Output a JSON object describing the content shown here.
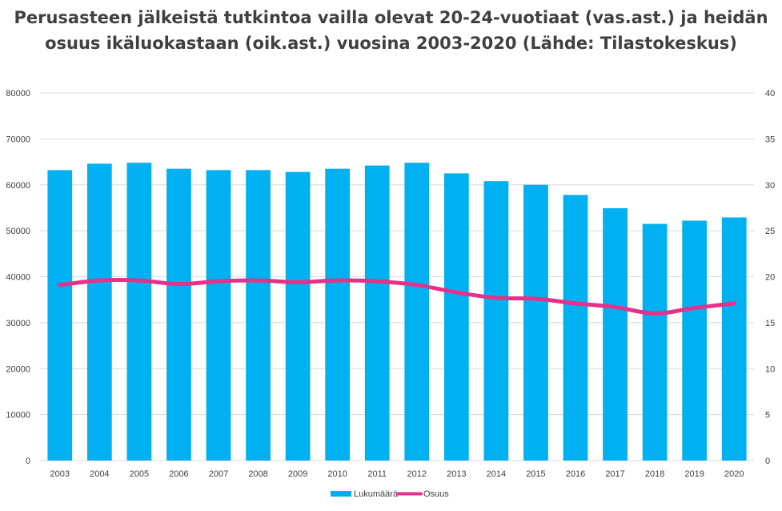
{
  "chart_data": {
    "type": "bar",
    "title": "Perusasteen jälkeistä tutkintoa vailla olevat 20-24-vuotiaat (vas.ast.) ja heidän osuus ikäluokastaan (oik.ast.) vuosina 2003-2020 (Lähde: Tilastokeskus)",
    "categories": [
      "2003",
      "2004",
      "2005",
      "2006",
      "2007",
      "2008",
      "2009",
      "2010",
      "2011",
      "2012",
      "2013",
      "2014",
      "2015",
      "2016",
      "2017",
      "2018",
      "2019",
      "2020"
    ],
    "series": [
      {
        "name": "Lukumäärä",
        "type": "bar",
        "axis": "left",
        "color": "#00B0F0",
        "values": [
          63200,
          64600,
          64800,
          63500,
          63200,
          63200,
          62800,
          63500,
          64200,
          64800,
          62500,
          60800,
          60000,
          57800,
          54900,
          51500,
          52200,
          52900
        ]
      },
      {
        "name": "Osuus",
        "type": "line",
        "axis": "right",
        "color": "#E8308A",
        "values": [
          19.1,
          19.6,
          19.6,
          19.2,
          19.5,
          19.6,
          19.4,
          19.6,
          19.5,
          19.1,
          18.3,
          17.7,
          17.6,
          17.1,
          16.7,
          16.0,
          16.6,
          17.1
        ]
      }
    ],
    "y_left": {
      "min": 0,
      "max": 80000,
      "step": 10000,
      "ticks": [
        "0",
        "10000",
        "20000",
        "30000",
        "40000",
        "50000",
        "60000",
        "70000",
        "80000"
      ]
    },
    "y_right": {
      "min": 0,
      "max": 40,
      "step": 5,
      "ticks": [
        "0",
        "5",
        "10",
        "15",
        "20",
        "25",
        "30",
        "35",
        "40"
      ]
    },
    "grid": true,
    "legend": "bottom",
    "colors": {
      "gridline": "#D9D9D9",
      "text": "#404040"
    }
  }
}
